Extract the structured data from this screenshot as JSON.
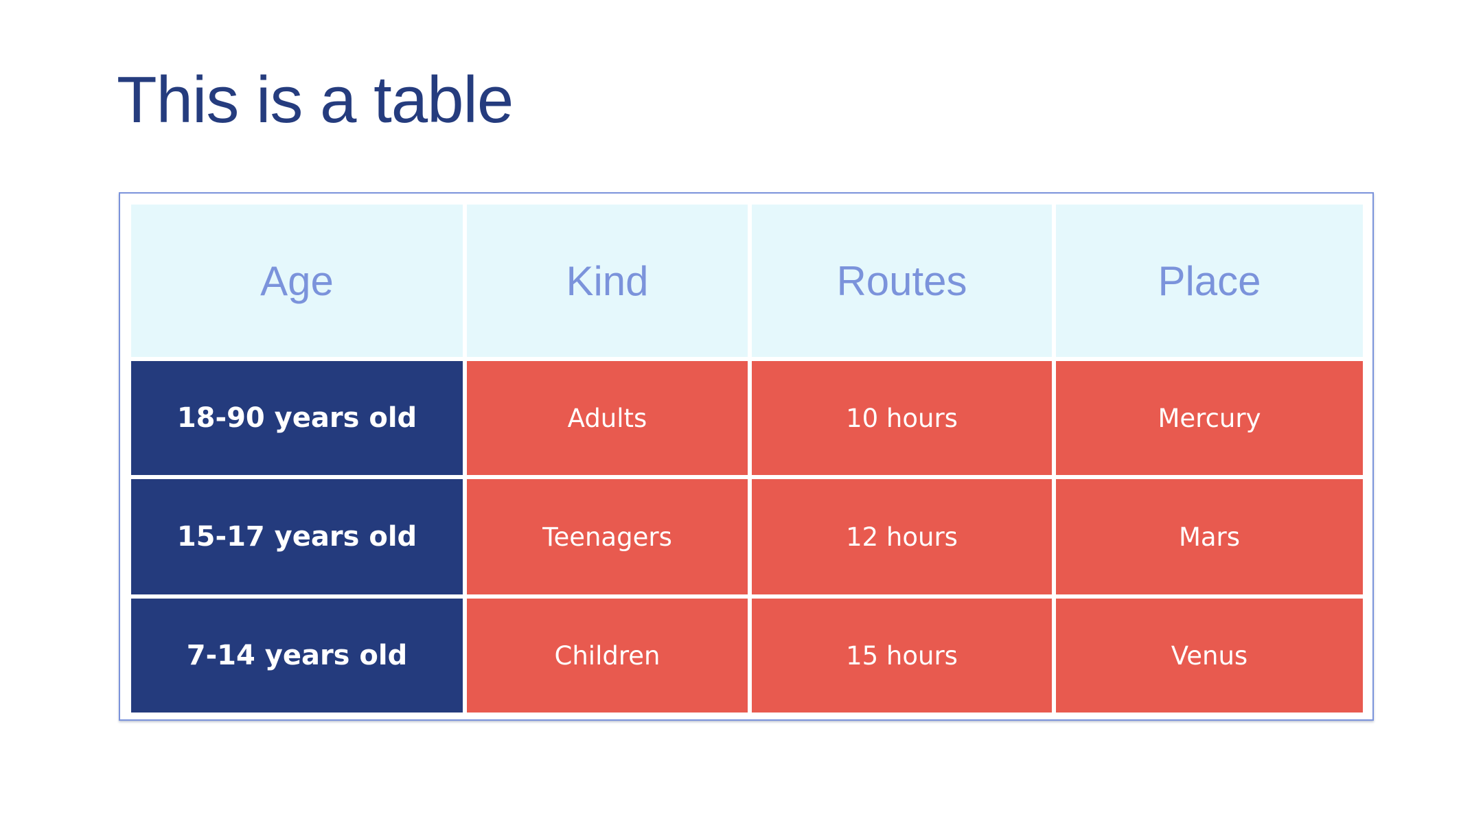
{
  "slide": {
    "title": "This is a table"
  },
  "table": {
    "headers": [
      "Age",
      "Kind",
      "Routes",
      "Place"
    ],
    "rows": [
      [
        "18-90 years old",
        "Adults",
        "10 hours",
        "Mercury"
      ],
      [
        "15-17 years old",
        "Teenagers",
        "12 hours",
        "Mars"
      ],
      [
        "7-14 years old",
        "Children",
        "15 hours",
        "Venus"
      ]
    ]
  },
  "colors": {
    "title": "#253C7E",
    "header_bg": "#E5F8FC",
    "header_text": "#7B93DB",
    "age_bg": "#243B7D",
    "cell_bg": "#E85A4F",
    "frame_border": "#7B93DB"
  }
}
